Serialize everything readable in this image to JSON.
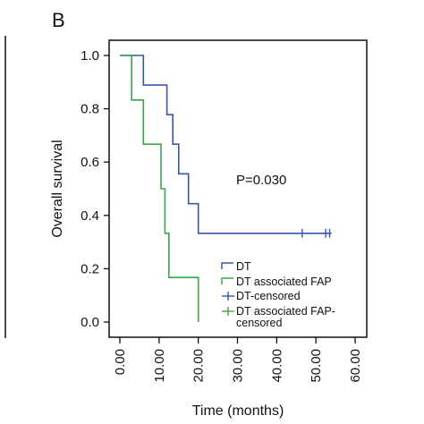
{
  "panel_label": "B",
  "chart_data": {
    "type": "line",
    "subtype": "kaplan-meier",
    "xlabel": "Time (months)",
    "ylabel": "Overall survival",
    "xlim": [
      0,
      60
    ],
    "ylim": [
      0,
      1
    ],
    "x_ticks": [
      0,
      10,
      20,
      30,
      40,
      50,
      60
    ],
    "x_tick_labels": [
      "0.00",
      "10.00",
      "20.00",
      "30.00",
      "40.00",
      "50.00",
      "60.00"
    ],
    "y_ticks": [
      0,
      0.2,
      0.4,
      0.6,
      0.8,
      1.0
    ],
    "y_tick_labels": [
      "0.0",
      "0.2",
      "0.4",
      "0.6",
      "0.8",
      "1.0"
    ],
    "annotation": "P=0.030",
    "legend_placement": "bottom-right",
    "series": [
      {
        "name": "DT",
        "color": "#3a56a8",
        "steps": [
          [
            0,
            1.0
          ],
          [
            6,
            1.0
          ],
          [
            6,
            0.889
          ],
          [
            12,
            0.889
          ],
          [
            12,
            0.778
          ],
          [
            13.5,
            0.778
          ],
          [
            13.5,
            0.667
          ],
          [
            15,
            0.667
          ],
          [
            15,
            0.556
          ],
          [
            17.5,
            0.556
          ],
          [
            17.5,
            0.444
          ],
          [
            20,
            0.444
          ],
          [
            20,
            0.333
          ],
          [
            54,
            0.333
          ]
        ],
        "censored": [
          46.5,
          52.5,
          53.5
        ]
      },
      {
        "name": "DT associated FAP",
        "color": "#3aa64a",
        "steps": [
          [
            0,
            1.0
          ],
          [
            3,
            1.0
          ],
          [
            3,
            0.833
          ],
          [
            6,
            0.833
          ],
          [
            6,
            0.667
          ],
          [
            10.5,
            0.667
          ],
          [
            10.5,
            0.5
          ],
          [
            11.5,
            0.5
          ],
          [
            11.5,
            0.333
          ],
          [
            12.5,
            0.333
          ],
          [
            12.5,
            0.167
          ],
          [
            20,
            0.167
          ],
          [
            20,
            0.0
          ]
        ],
        "censored": []
      }
    ],
    "legend_entries": [
      {
        "label": "DT",
        "color": "#3a56a8",
        "kind": "step"
      },
      {
        "label": "DT associated FAP",
        "color": "#3aa64a",
        "kind": "step"
      },
      {
        "label": "DT-censored",
        "color": "#3a56a8",
        "kind": "censor"
      },
      {
        "label": "DT associated FAP-",
        "label2": "censored",
        "color": "#3aa64a",
        "kind": "censor"
      }
    ]
  }
}
